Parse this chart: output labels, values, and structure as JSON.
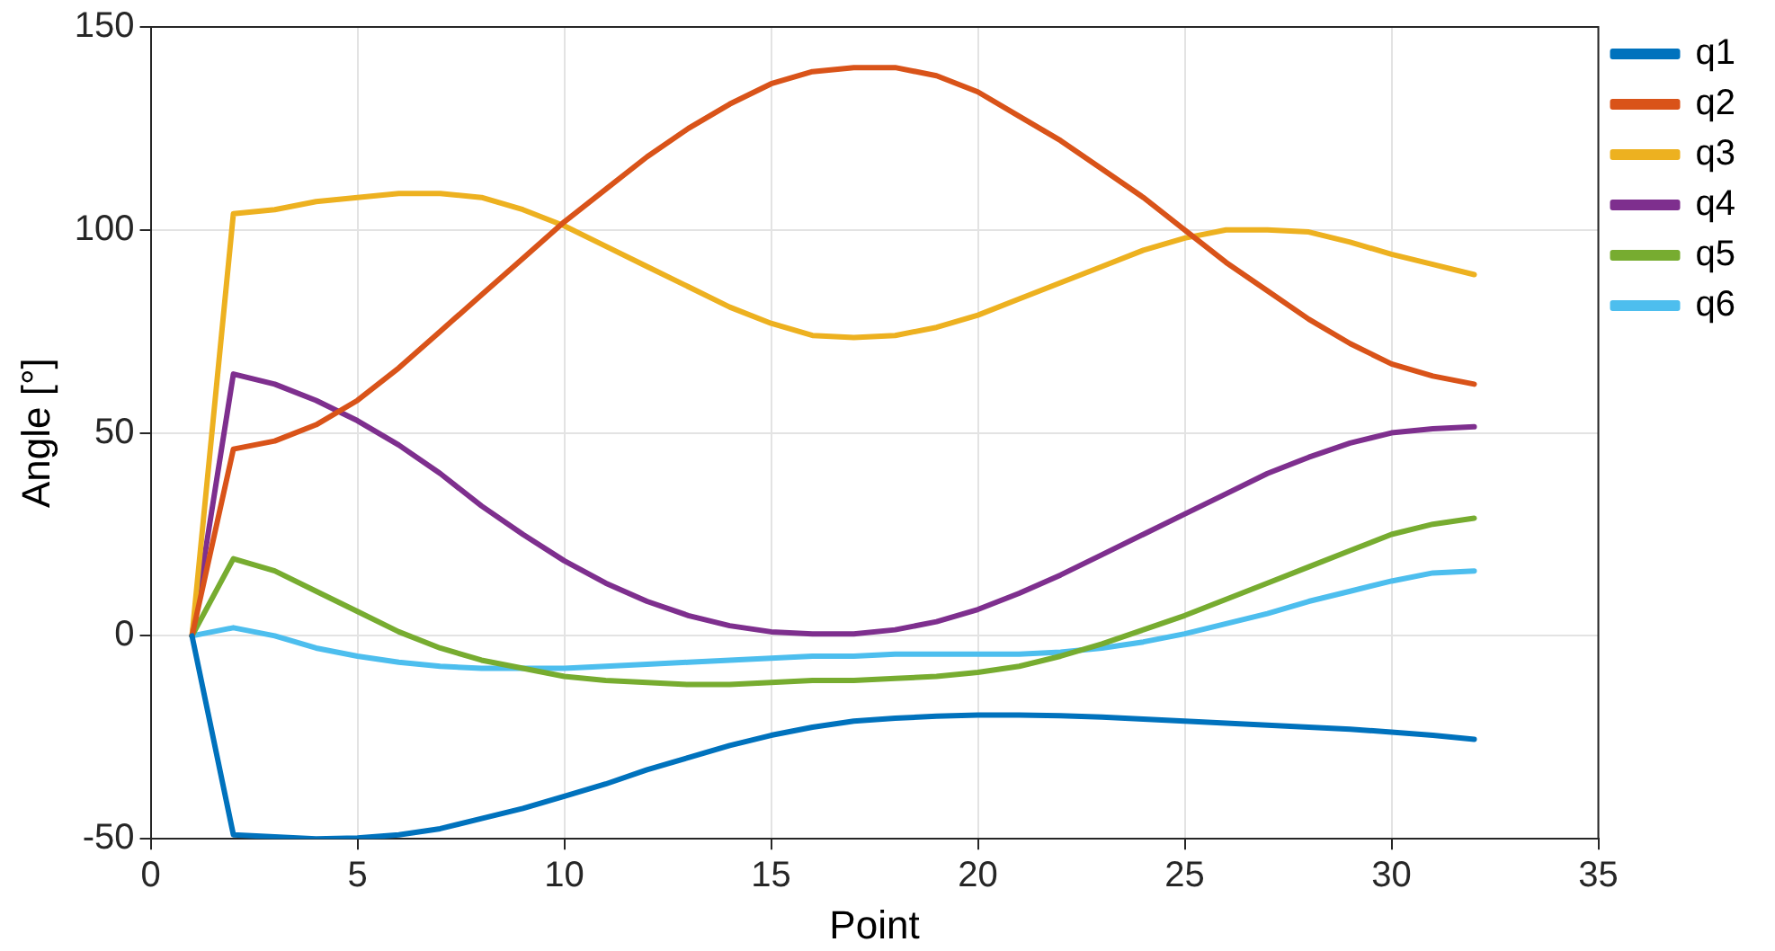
{
  "chart_data": {
    "type": "line",
    "xlabel": "Point",
    "ylabel": "Angle [°]",
    "x": [
      1,
      2,
      3,
      4,
      5,
      6,
      7,
      8,
      9,
      10,
      11,
      12,
      13,
      14,
      15,
      16,
      17,
      18,
      19,
      20,
      21,
      22,
      23,
      24,
      25,
      26,
      27,
      28,
      29,
      30,
      31,
      32
    ],
    "series": [
      {
        "name": "q1",
        "color": "#0072bd",
        "values": [
          0,
          -49,
          -49.5,
          -50,
          -49.8,
          -49,
          -47.5,
          -45,
          -42.5,
          -39.5,
          -36.5,
          -33,
          -30,
          -27,
          -24.5,
          -22.5,
          -21,
          -20.3,
          -19.8,
          -19.5,
          -19.5,
          -19.7,
          -20,
          -20.5,
          -21,
          -21.5,
          -22,
          -22.5,
          -23,
          -23.7,
          -24.5,
          -25.5
        ]
      },
      {
        "name": "q2",
        "color": "#d95319",
        "values": [
          0,
          46,
          48,
          52,
          58,
          66,
          75,
          84,
          93,
          102,
          110,
          118,
          125,
          131,
          136,
          139,
          140,
          140,
          138,
          134,
          128,
          122,
          115,
          108,
          100,
          92,
          85,
          78,
          72,
          67,
          64,
          62
        ]
      },
      {
        "name": "q3",
        "color": "#edb120",
        "values": [
          0,
          104,
          105,
          107,
          108,
          109,
          109,
          108,
          105,
          101,
          96,
          91,
          86,
          81,
          77,
          74,
          73.5,
          74,
          76,
          79,
          83,
          87,
          91,
          95,
          98,
          100,
          100,
          99.5,
          97,
          94,
          91.5,
          89
        ]
      },
      {
        "name": "q4",
        "color": "#7e2f8e",
        "values": [
          0,
          64.5,
          62,
          58,
          53,
          47,
          40,
          32,
          25,
          18.5,
          13,
          8.5,
          5,
          2.5,
          1,
          0.5,
          0.5,
          1.5,
          3.5,
          6.5,
          10.5,
          15,
          20,
          25,
          30,
          35,
          40,
          44,
          47.5,
          50,
          51,
          51.5
        ]
      },
      {
        "name": "q5",
        "color": "#77ac30",
        "values": [
          0,
          19,
          16,
          11,
          6,
          1,
          -3,
          -6,
          -8,
          -10,
          -11,
          -11.5,
          -12,
          -12,
          -11.5,
          -11,
          -11,
          -10.5,
          -10,
          -9,
          -7.5,
          -5,
          -2,
          1.5,
          5,
          9,
          13,
          17,
          21,
          25,
          27.5,
          29
        ]
      },
      {
        "name": "q6",
        "color": "#4dbeee",
        "values": [
          0,
          2,
          0,
          -3,
          -5,
          -6.5,
          -7.5,
          -8,
          -8,
          -8,
          -7.5,
          -7,
          -6.5,
          -6,
          -5.5,
          -5,
          -5,
          -4.5,
          -4.5,
          -4.5,
          -4.5,
          -4,
          -3,
          -1.5,
          0.5,
          3,
          5.5,
          8.5,
          11,
          13.5,
          15.5,
          16
        ]
      }
    ],
    "xlim": [
      0,
      35
    ],
    "xticks": [
      0,
      5,
      10,
      15,
      20,
      25,
      30,
      35
    ],
    "ylim": [
      -50,
      150
    ],
    "yticks": [
      -50,
      0,
      50,
      100,
      150
    ],
    "grid": true,
    "legend": "top right",
    "marker": "none",
    "line_style": "solid"
  }
}
